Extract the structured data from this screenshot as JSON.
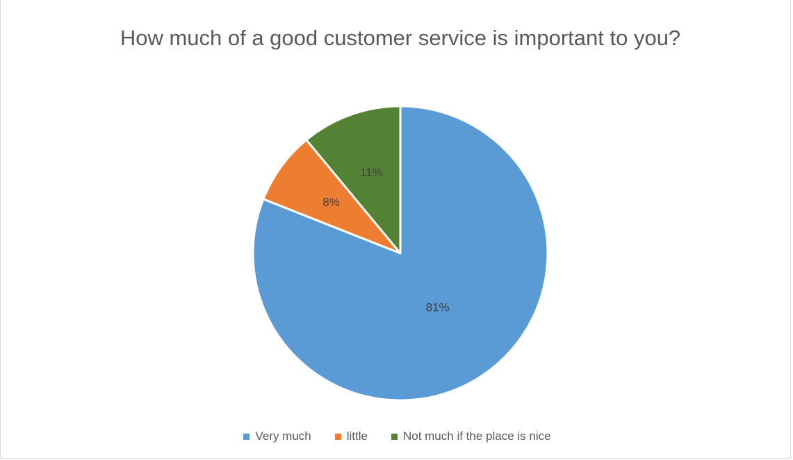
{
  "chart_data": {
    "type": "pie",
    "title": "How much of a good customer service is important to you?",
    "categories": [
      "Very much",
      "little",
      "Not much if the place is nice"
    ],
    "values": [
      81,
      8,
      11
    ],
    "labels": [
      "81%",
      "8%",
      "11%"
    ],
    "colors": [
      "#5b9bd5",
      "#ed7d31",
      "#548235"
    ],
    "legend_position": "bottom"
  }
}
